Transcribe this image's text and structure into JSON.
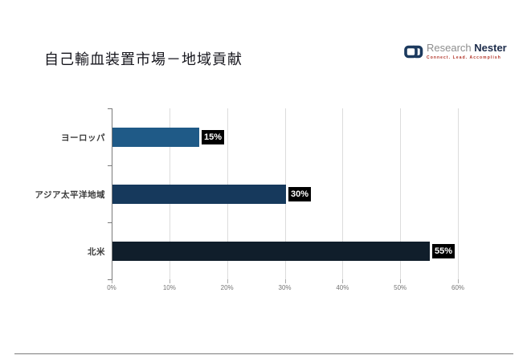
{
  "slide": {
    "title": "自己輸血装置市場－地域貢献"
  },
  "logo": {
    "name_part1": "Research",
    "name_part2": "Nester",
    "tagline": "Connect. Lead. Accomplish",
    "icon": "interlocked-links-icon",
    "icon_color": "#1c3a5e",
    "tagline_color": "#b03024"
  },
  "chart_data": {
    "type": "bar",
    "orientation": "horizontal",
    "title": "自己輸血装置市場－地域貢献",
    "categories": [
      "ヨーロッパ",
      "アジア太平洋地域",
      "北米"
    ],
    "values": [
      15,
      30,
      55
    ],
    "value_labels": [
      "15%",
      "30%",
      "55%"
    ],
    "bar_colors": [
      "#1f5a87",
      "#16395c",
      "#101e2b"
    ],
    "x_tick_labels": [
      "0%",
      "10%",
      "20%",
      "30%",
      "40%",
      "50%",
      "60%"
    ],
    "xlim": [
      0,
      60
    ],
    "grid": "vertical-light-gray",
    "value_label_style": "white-on-black",
    "legend": "none"
  }
}
